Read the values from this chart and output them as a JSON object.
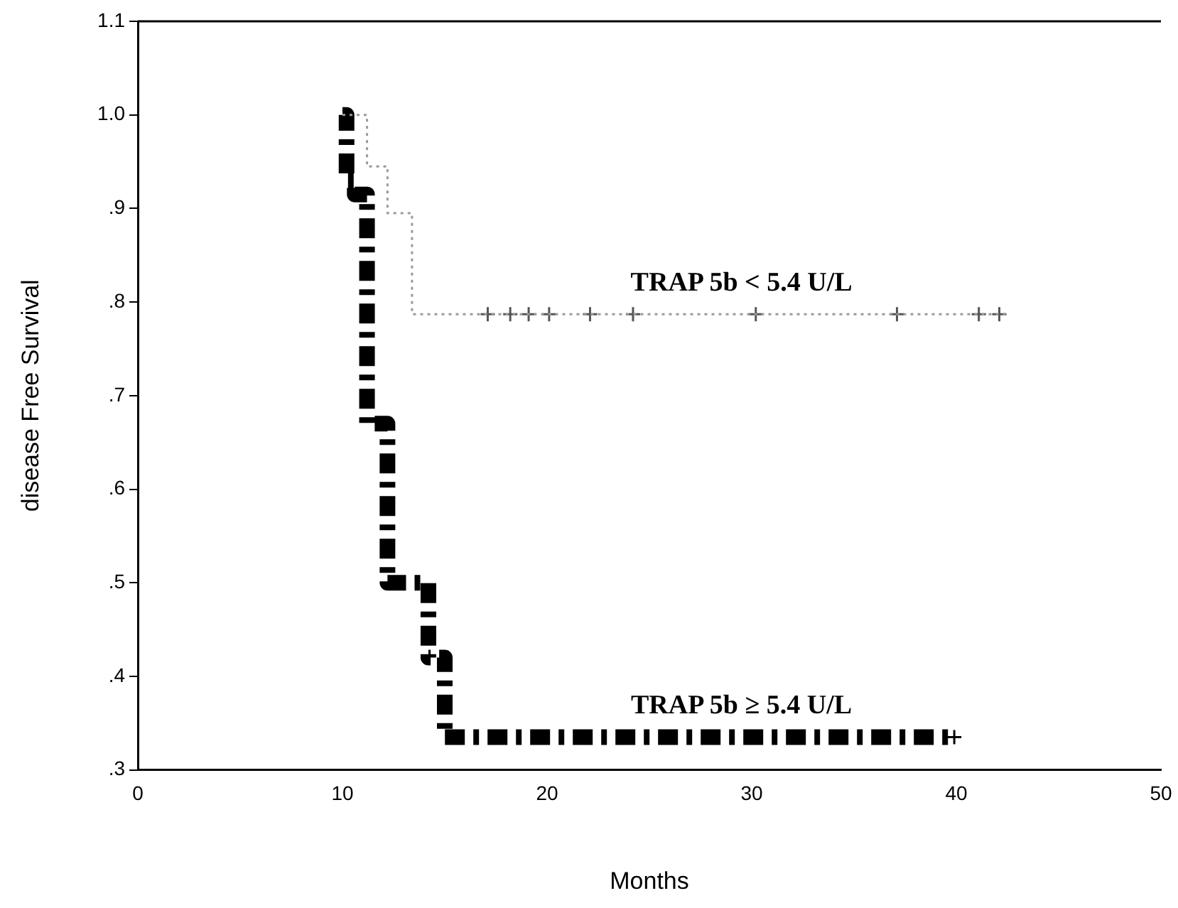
{
  "chart_data": {
    "type": "step",
    "xlabel": "Months",
    "ylabel": "disease Free Survival",
    "xlim": [
      0,
      50
    ],
    "xticks": [
      0,
      10,
      20,
      30,
      40,
      50
    ],
    "ylim": [
      0.3,
      1.1
    ],
    "yticks": [
      {
        "value": 0.3,
        "label": ".3"
      },
      {
        "value": 0.4,
        "label": ".4"
      },
      {
        "value": 0.5,
        "label": ".5"
      },
      {
        "value": 0.6,
        "label": ".6"
      },
      {
        "value": 0.7,
        "label": ".7"
      },
      {
        "value": 0.8,
        "label": ".8"
      },
      {
        "value": 0.9,
        "label": ".9"
      },
      {
        "value": 1.0,
        "label": "1.0"
      },
      {
        "value": 1.1,
        "label": "1.1"
      }
    ],
    "grid": false,
    "legend": false,
    "series": [
      {
        "color": "#9a9a9a",
        "line_style": "dotted",
        "marker": "none",
        "x": [
          10,
          11.2,
          12.2,
          13.4,
          42.4
        ],
        "values": [
          1.0,
          0.945,
          0.895,
          0.787,
          0.787
        ]
      },
      {
        "type": "scatter",
        "color": "#555555",
        "marker": "cross",
        "x": [
          17.1,
          18.2,
          19.1,
          20.1,
          22.1,
          24.2,
          30.2,
          37.1,
          41.1,
          42.1
        ],
        "values": [
          0.787,
          0.787,
          0.787,
          0.787,
          0.787,
          0.787,
          0.787,
          0.787,
          0.787,
          0.787
        ]
      },
      {
        "color": "#000000",
        "line_style": "dashed",
        "marker": "none",
        "x": [
          10,
          10.2,
          10.6,
          11.2,
          12.2,
          14.2,
          15.0,
          39.9
        ],
        "values": [
          1.0,
          0.93,
          0.915,
          0.67,
          0.5,
          0.42,
          0.335,
          0.335
        ]
      },
      {
        "type": "scatter",
        "color": "#000000",
        "marker": "cross",
        "x": [
          39.9
        ],
        "values": [
          0.335
        ]
      }
    ],
    "annotations": [
      "TRAP 5b < 5.4 U/L",
      "TRAP 5b ≥ 5.4 U/L"
    ]
  }
}
